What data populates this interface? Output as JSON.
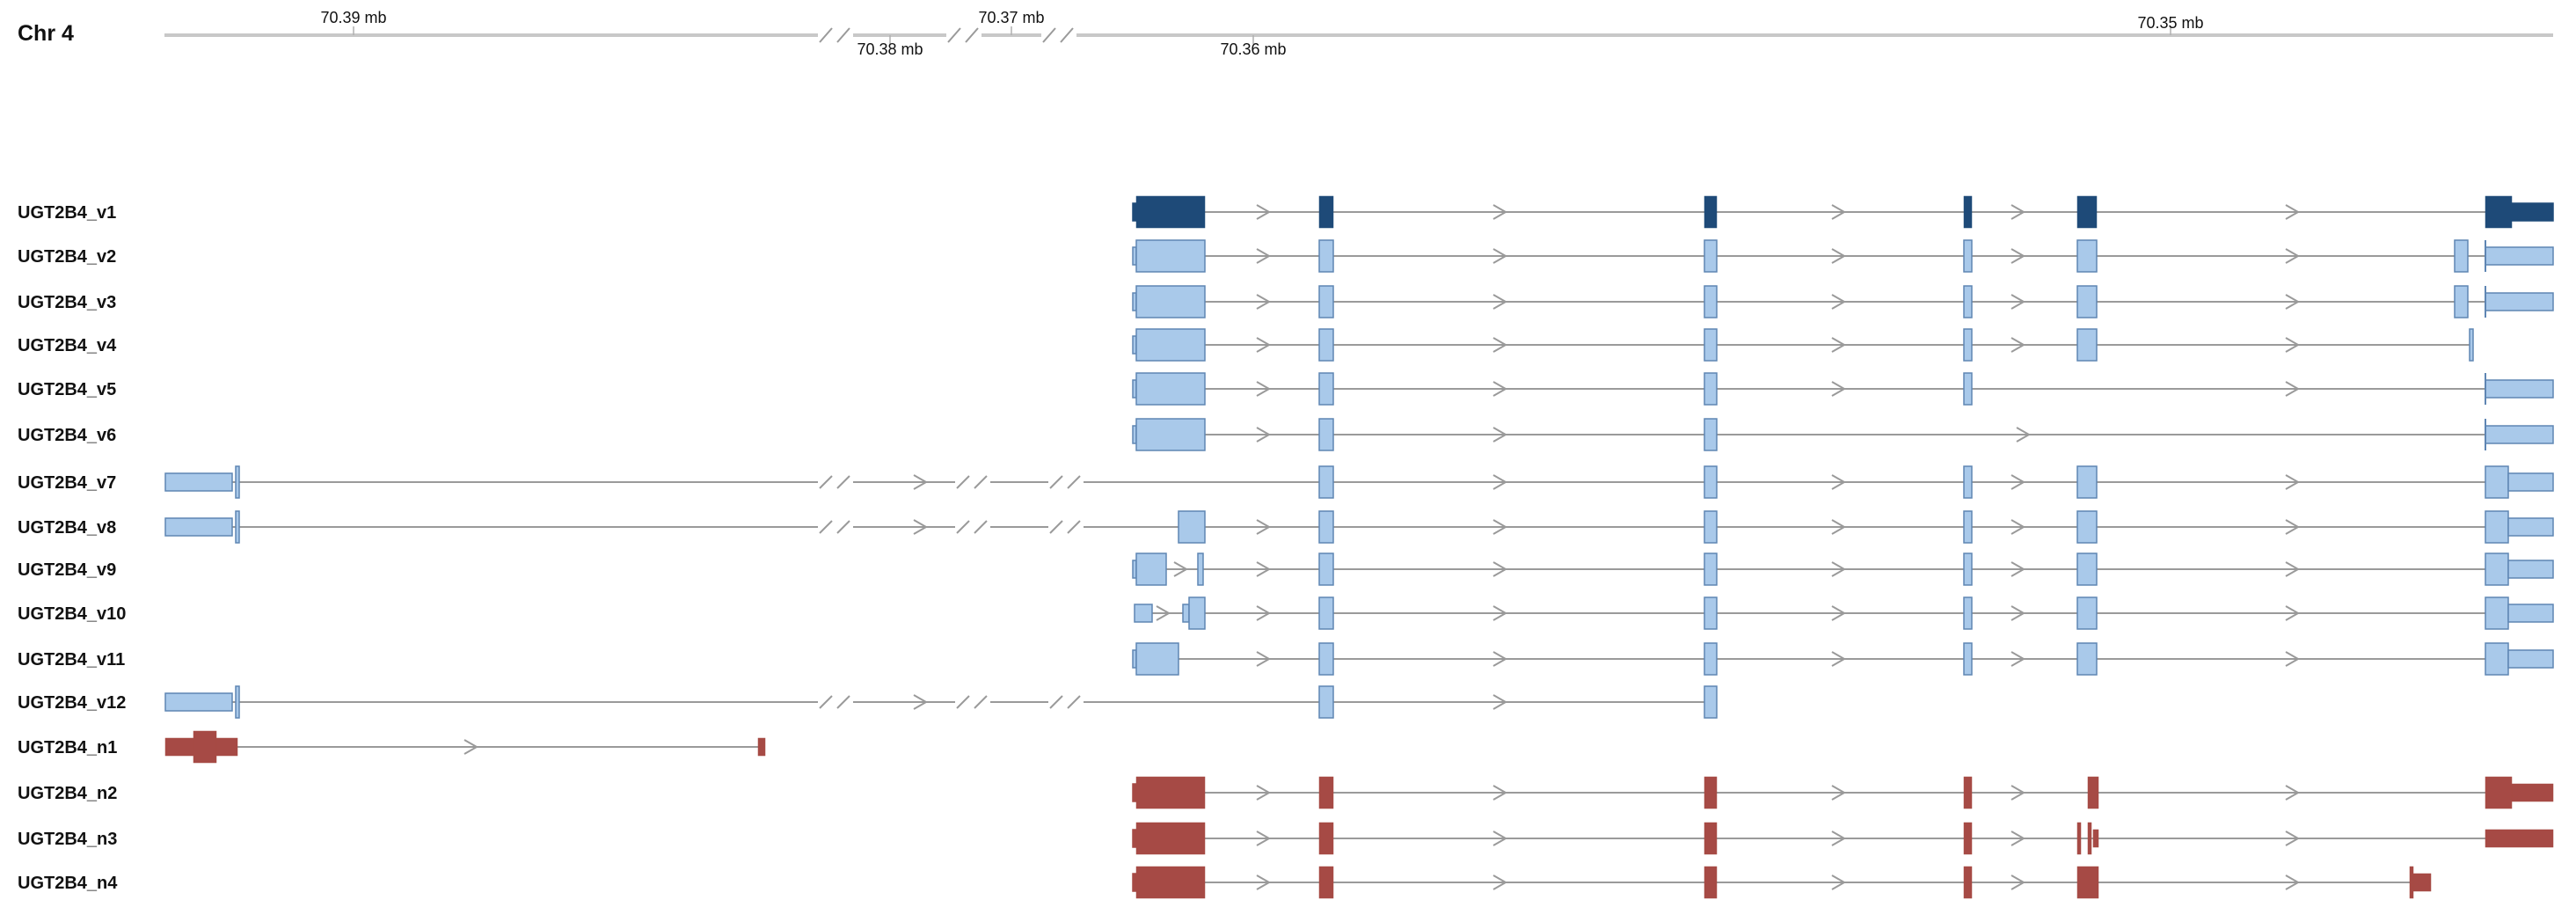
{
  "chromosome": "Chr 4",
  "colors": {
    "reference": "#1e4a78",
    "variant_fill": "#a9c9ea",
    "variant_stroke": "#5f86b3",
    "novel": "#a64a45",
    "intron": "#9a9a9a",
    "axis": "#c8c8c8"
  },
  "ticks": [
    "70.39 mb",
    "70.38 mb",
    "70.37 mb",
    "70.36 mb",
    "70.35 mb"
  ],
  "transcripts": [
    {
      "name": "UGT2B4_v1",
      "kind": "reference"
    },
    {
      "name": "UGT2B4_v2",
      "kind": "variant"
    },
    {
      "name": "UGT2B4_v3",
      "kind": "variant"
    },
    {
      "name": "UGT2B4_v4",
      "kind": "variant"
    },
    {
      "name": "UGT2B4_v5",
      "kind": "variant"
    },
    {
      "name": "UGT2B4_v6",
      "kind": "variant"
    },
    {
      "name": "UGT2B4_v7",
      "kind": "variant"
    },
    {
      "name": "UGT2B4_v8",
      "kind": "variant"
    },
    {
      "name": "UGT2B4_v9",
      "kind": "variant"
    },
    {
      "name": "UGT2B4_v10",
      "kind": "variant"
    },
    {
      "name": "UGT2B4_v11",
      "kind": "variant"
    },
    {
      "name": "UGT2B4_v12",
      "kind": "variant"
    },
    {
      "name": "UGT2B4_n1",
      "kind": "novel"
    },
    {
      "name": "UGT2B4_n2",
      "kind": "novel"
    },
    {
      "name": "UGT2B4_n3",
      "kind": "novel"
    },
    {
      "name": "UGT2B4_n4",
      "kind": "novel"
    }
  ]
}
